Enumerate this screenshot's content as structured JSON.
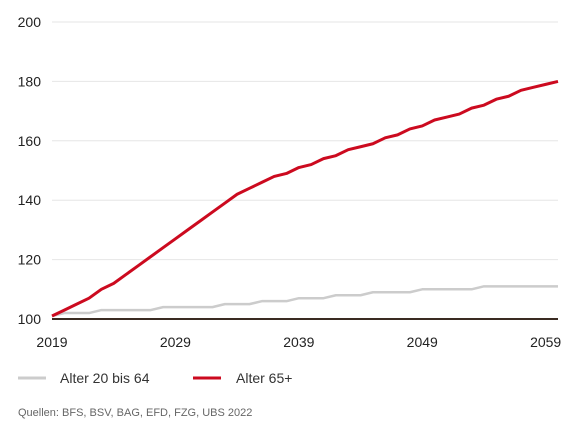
{
  "chart_data": {
    "type": "line",
    "title": "",
    "xlabel": "",
    "ylabel": "",
    "xlim": [
      2019,
      2060
    ],
    "ylim": [
      100,
      200
    ],
    "grid": true,
    "legend_position": "bottom",
    "x_ticks": [
      "2019",
      "2029",
      "2039",
      "2049",
      "2059"
    ],
    "y_ticks": [
      "100",
      "120",
      "140",
      "160",
      "180",
      "200"
    ],
    "x": [
      2019,
      2020,
      2021,
      2022,
      2023,
      2024,
      2025,
      2026,
      2027,
      2028,
      2029,
      2030,
      2031,
      2032,
      2033,
      2034,
      2035,
      2036,
      2037,
      2038,
      2039,
      2040,
      2041,
      2042,
      2043,
      2044,
      2045,
      2046,
      2047,
      2048,
      2049,
      2050,
      2051,
      2052,
      2053,
      2054,
      2055,
      2056,
      2057,
      2058,
      2059,
      2060
    ],
    "series": [
      {
        "name": "Alter 20 bis 64",
        "color": "#cccccc",
        "values": [
          101,
          102,
          102,
          102,
          103,
          103,
          103,
          103,
          103,
          104,
          104,
          104,
          104,
          104,
          105,
          105,
          105,
          106,
          106,
          106,
          107,
          107,
          107,
          108,
          108,
          108,
          109,
          109,
          109,
          109,
          110,
          110,
          110,
          110,
          110,
          111,
          111,
          111,
          111,
          111,
          111,
          111
        ]
      },
      {
        "name": "Alter 65+",
        "color": "#cc0a1f",
        "values": [
          101,
          103,
          105,
          107,
          110,
          112,
          115,
          118,
          121,
          124,
          127,
          130,
          133,
          136,
          139,
          142,
          144,
          146,
          148,
          149,
          151,
          152,
          154,
          155,
          157,
          158,
          159,
          161,
          162,
          164,
          165,
          167,
          168,
          169,
          171,
          172,
          174,
          175,
          177,
          178,
          179,
          180
        ]
      }
    ],
    "source": "Quellen: BFS, BSV, BAG, EFD, FZG, UBS 2022"
  }
}
